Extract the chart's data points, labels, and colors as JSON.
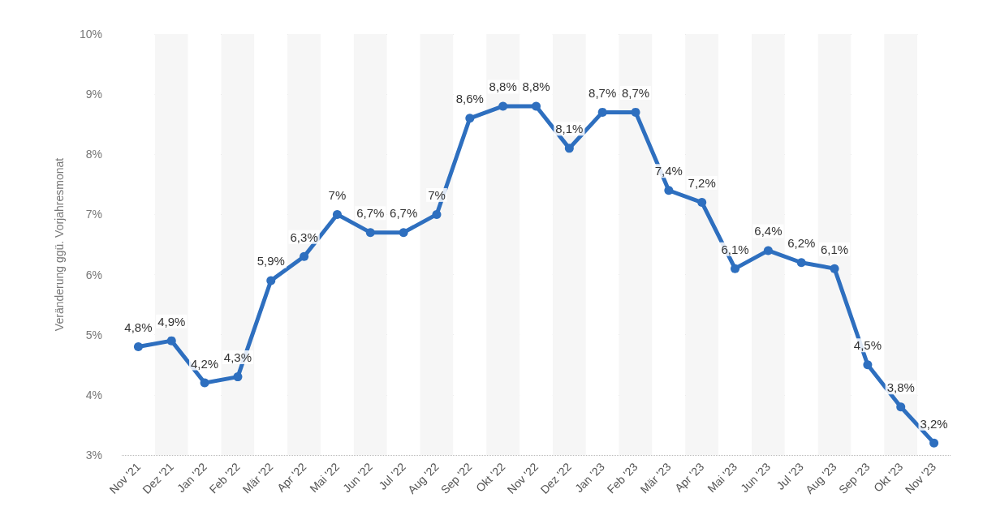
{
  "chart_data": {
    "type": "line",
    "ylabel": "Veränderung ggü. Vorjahresmonat",
    "categories": [
      "Nov '21",
      "Dez '21",
      "Jan '22",
      "Feb '22",
      "Mär '22",
      "Apr '22",
      "Mai '22",
      "Jun '22",
      "Jul '22",
      "Aug '22",
      "Sep '22",
      "Okt '22",
      "Nov '22",
      "Dez '22",
      "Jan '23",
      "Feb '23",
      "Mär '23",
      "Apr '23",
      "Mai '23",
      "Jun '23",
      "Jul '23",
      "Aug '23",
      "Sep '23",
      "Okt '23",
      "Nov '23"
    ],
    "series": [
      {
        "color": "#2e6fbf",
        "values": [
          4.8,
          4.9,
          4.2,
          4.3,
          5.9,
          6.3,
          7,
          6.7,
          6.7,
          7,
          8.6,
          8.8,
          8.8,
          8.1,
          8.7,
          8.7,
          7.4,
          7.2,
          6.1,
          6.4,
          6.2,
          6.1,
          4.5,
          3.8,
          3.2
        ],
        "value_labels": [
          "4,8%",
          "4,9%",
          "4,2%",
          "4,3%",
          "5,9%",
          "6,3%",
          "7%",
          "6,7%",
          "6,7%",
          "7%",
          "8,6%",
          "8,8%",
          "8,8%",
          "8,1%",
          "8,7%",
          "8,7%",
          "7,4%",
          "7,2%",
          "6,1%",
          "6,4%",
          "6,2%",
          "6,1%",
          "4,5%",
          "3,8%",
          "3,2%"
        ]
      }
    ],
    "ylim": [
      3,
      10
    ],
    "yticks": [
      {
        "value": 3,
        "label": "3%"
      },
      {
        "value": 4,
        "label": "4%"
      },
      {
        "value": 5,
        "label": "5%"
      },
      {
        "value": 6,
        "label": "6%"
      },
      {
        "value": 7,
        "label": "7%"
      },
      {
        "value": 8,
        "label": "8%"
      },
      {
        "value": 9,
        "label": "9%"
      },
      {
        "value": 10,
        "label": "10%"
      }
    ],
    "grid": "y",
    "marker": "circle",
    "line_style": "solid"
  }
}
